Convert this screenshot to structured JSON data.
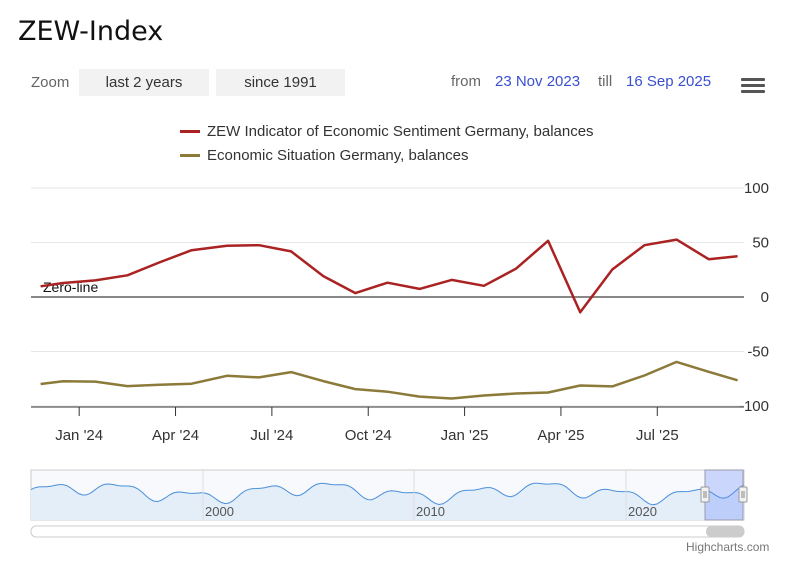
{
  "title": "ZEW-Index",
  "zoom": {
    "label": "Zoom",
    "buttons": [
      "last 2 years",
      "since 1991"
    ]
  },
  "range": {
    "from_label": "from",
    "from_value": "23 Nov 2023",
    "till_label": "till",
    "till_value": "16 Sep 2025"
  },
  "credits": "Highcharts.com",
  "colors": {
    "sentiment": "#aa2222",
    "situation": "#8b7a3a",
    "navigator": "#4a90d9"
  },
  "chart_data": {
    "type": "line",
    "title": "ZEW-Index",
    "ylim": [
      -100,
      100
    ],
    "yticks": [
      100,
      50,
      0,
      -50,
      -100
    ],
    "xticks": [
      {
        "label": "Jan '24",
        "x": 2
      },
      {
        "label": "Apr '24",
        "x": 5
      },
      {
        "label": "Jul '24",
        "x": 8
      },
      {
        "label": "Oct '24",
        "x": 11
      },
      {
        "label": "Jan '25",
        "x": 14
      },
      {
        "label": "Apr '25",
        "x": 17
      },
      {
        "label": "Jul '25",
        "x": 20
      }
    ],
    "plot_line": {
      "value": 0,
      "label": "Zero-line"
    },
    "series": [
      {
        "name": "ZEW Indicator of Economic Sentiment Germany, balances",
        "x": [
          0.8,
          1.5,
          2.5,
          3.5,
          4.5,
          5.5,
          6.6,
          7.6,
          8.6,
          9.6,
          10.6,
          11.6,
          12.6,
          13.6,
          14.6,
          15.6,
          16.6,
          17.6,
          18.6,
          19.6,
          20.6,
          21.6,
          22.5
        ],
        "values": [
          9.8,
          12.8,
          15.2,
          19.9,
          31.7,
          42.9,
          47.1,
          47.5,
          41.8,
          19.2,
          3.6,
          13.1,
          7.4,
          15.7,
          10.3,
          26.0,
          51.6,
          -14.0,
          25.2,
          47.5,
          52.7,
          34.7,
          37.3
        ]
      },
      {
        "name": "Economic Situation Germany, balances",
        "x": [
          0.8,
          1.5,
          2.5,
          3.5,
          4.5,
          5.5,
          6.6,
          7.6,
          8.6,
          9.6,
          10.6,
          11.6,
          12.6,
          13.6,
          14.6,
          15.6,
          16.6,
          17.6,
          18.6,
          19.6,
          20.6,
          21.6,
          22.5
        ],
        "values": [
          -79.8,
          -77.3,
          -77.6,
          -81.7,
          -80.5,
          -79.5,
          -72.3,
          -73.8,
          -68.9,
          -77.2,
          -84.5,
          -86.9,
          -91.4,
          -93.1,
          -90.4,
          -88.5,
          -87.6,
          -81.2,
          -82.0,
          -72.0,
          -59.5,
          -68.6,
          -76.4
        ]
      }
    ],
    "navigator": {
      "labels": [
        "2000",
        "2010",
        "2020"
      ]
    }
  }
}
